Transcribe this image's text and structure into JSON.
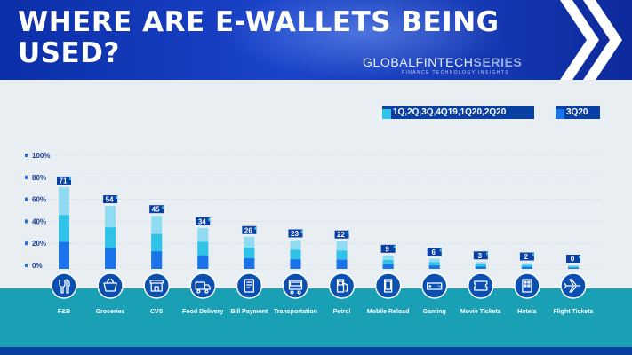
{
  "header": {
    "title": "WHERE ARE E-WALLETS BEING USED?",
    "brand_main": "GLOBALFINTECH",
    "brand_strong": "SERIES",
    "brand_sub": "FINANCE TECHNOLOGY INSIGHTS"
  },
  "colors": {
    "header_blue": "#1537b8",
    "bar_cyan": "#2fc3e8",
    "bar_light": "#8fdcf2",
    "bar_blue": "#1a73e8",
    "label_bg": "#0a3fa3",
    "band_teal": "#1aa0b4",
    "icon_circle": "#0b4fb0"
  },
  "chart_data": {
    "type": "bar",
    "title": "",
    "xlabel": "",
    "ylabel": "",
    "ylim": [
      0,
      100
    ],
    "yticks": [
      "100%",
      "80%",
      "60%",
      "40%",
      "20%",
      "0%"
    ],
    "legend": [
      "1Q,2Q,3Q,4Q19,1Q20,2Q20",
      "3Q20"
    ],
    "legend_position": "top-right",
    "grid": true,
    "categories": [
      "F&B",
      "Groceries",
      "CVS",
      "Food Delivery",
      "Bill Payment",
      "Transportation",
      "Petrol",
      "Mobile Reload",
      "Gaming",
      "Movie Tickets",
      "Hotels",
      "Flight Tickets"
    ],
    "values": [
      71,
      54,
      45,
      34,
      26,
      23,
      22,
      9,
      6,
      3,
      2,
      0
    ],
    "value_labels": [
      "71",
      "54",
      "45",
      "34",
      "26",
      "23",
      "22",
      "9",
      "6",
      "3",
      "2",
      "0"
    ]
  },
  "icons": [
    "fork-knife-icon",
    "grocery-basket-icon",
    "store-icon",
    "delivery-truck-icon",
    "bill-icon",
    "bus-icon",
    "fuel-pump-icon",
    "mobile-phone-icon",
    "game-controller-icon",
    "movie-ticket-icon",
    "hotel-building-icon",
    "airplane-icon"
  ]
}
